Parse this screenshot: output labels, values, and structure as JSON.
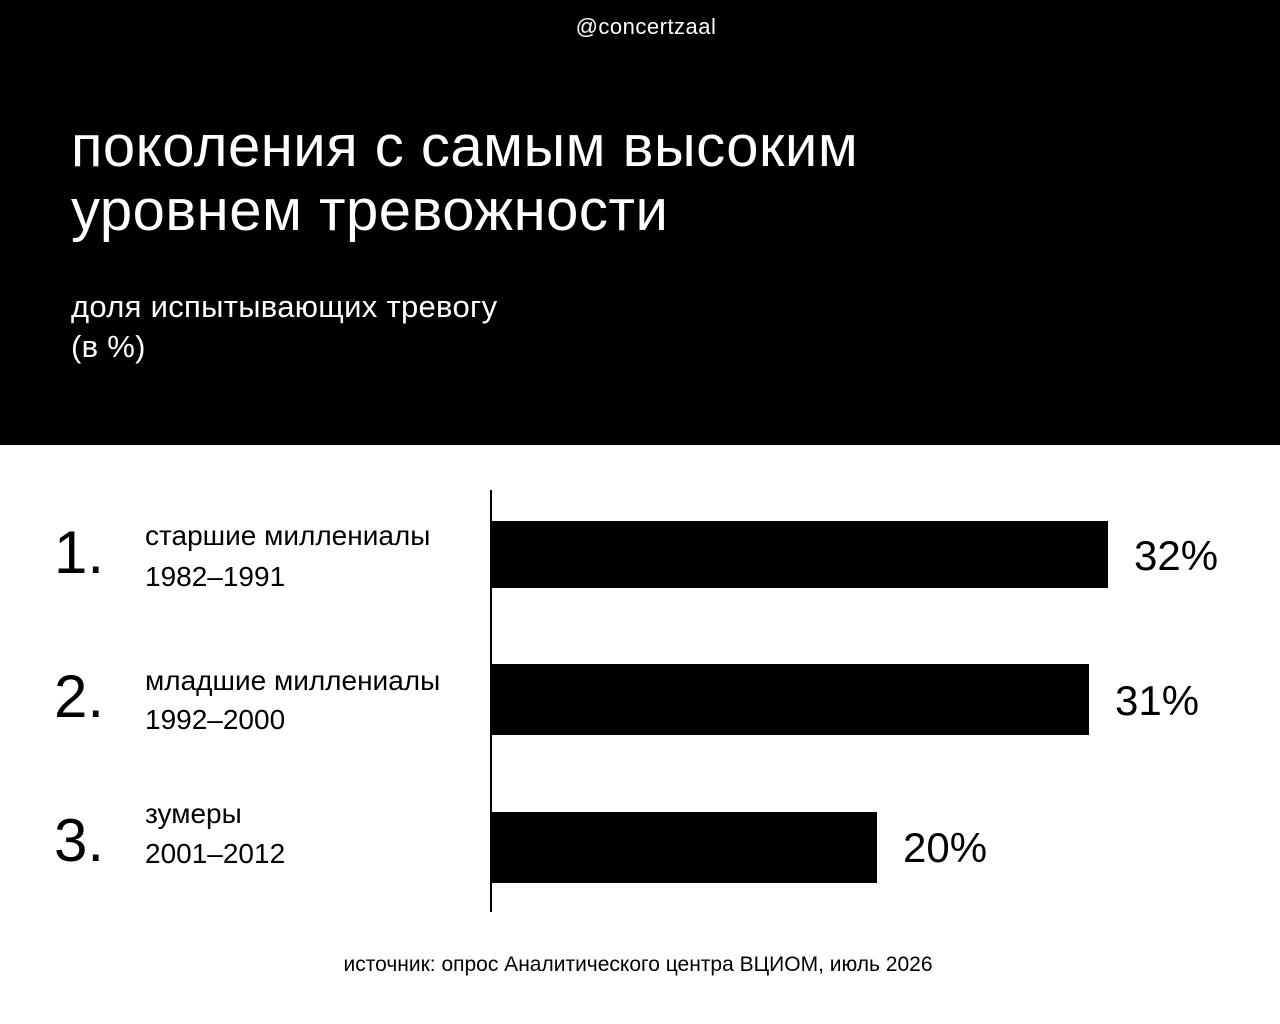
{
  "header": {
    "handle": "@concertzaal",
    "title_line1": "поколения с самым высоким",
    "title_line2": "уровнем тревожности",
    "subtitle_line1": "доля испытывающих тревогу",
    "subtitle_line2": "(в %)"
  },
  "chart_data": {
    "type": "bar",
    "orientation": "horizontal",
    "title": "поколения с самым высоким уровнем тревожности",
    "subtitle": "доля испытывающих тревогу (в %)",
    "categories": [
      "старшие миллениалы 1982–1991",
      "младшие миллениалы 1992–2000",
      "зумеры 2001–2012"
    ],
    "values": [
      32,
      31,
      20
    ],
    "value_unit": "%",
    "xlim": [
      0,
      32
    ],
    "grid": false,
    "legend": "none",
    "rows": [
      {
        "rank": "1.",
        "name": "старшие миллениалы",
        "years": "1982–1991",
        "value": 32,
        "value_label": "32%"
      },
      {
        "rank": "2.",
        "name": "младшие миллениалы",
        "years": "1992–2000",
        "value": 31,
        "value_label": "31%"
      },
      {
        "rank": "3.",
        "name": "зумеры",
        "years": "2001–2012",
        "value": 20,
        "value_label": "20%"
      }
    ]
  },
  "footer": {
    "source": "источник: опрос Аналитического центра ВЦИОМ, июль 2026"
  },
  "colors": {
    "header_background": "#000000",
    "header_text": "#ffffff",
    "bar": "#000000",
    "page_background": "#ffffff"
  }
}
